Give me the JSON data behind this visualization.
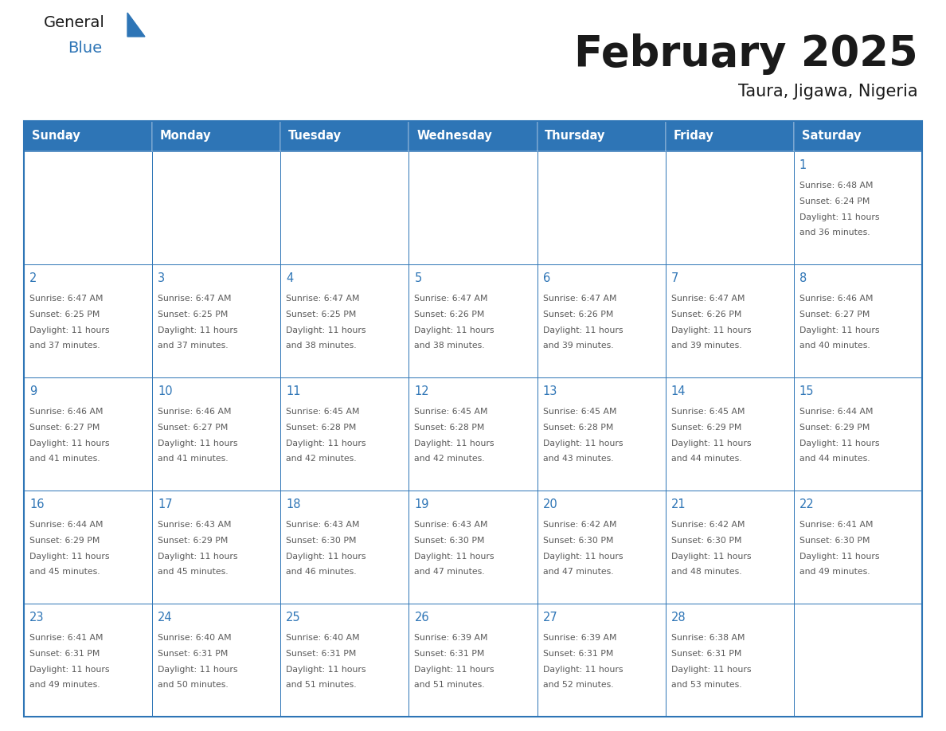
{
  "title": "February 2025",
  "subtitle": "Taura, Jigawa, Nigeria",
  "header_color": "#2E75B6",
  "header_text_color": "#FFFFFF",
  "days_of_week": [
    "Sunday",
    "Monday",
    "Tuesday",
    "Wednesday",
    "Thursday",
    "Friday",
    "Saturday"
  ],
  "bg_color": "#FFFFFF",
  "border_color": "#2E75B6",
  "text_color": "#595959",
  "day_num_color": "#2E75B6",
  "logo_general_color": "#1a1a1a",
  "logo_blue_color": "#2E75B6",
  "logo_triangle_color": "#2E75B6",
  "calendar_data": [
    [
      null,
      null,
      null,
      null,
      null,
      null,
      {
        "day": 1,
        "sunrise": "6:48 AM",
        "sunset": "6:24 PM",
        "daylight_line1": "Daylight: 11 hours",
        "daylight_line2": "and 36 minutes."
      }
    ],
    [
      {
        "day": 2,
        "sunrise": "6:47 AM",
        "sunset": "6:25 PM",
        "daylight_line1": "Daylight: 11 hours",
        "daylight_line2": "and 37 minutes."
      },
      {
        "day": 3,
        "sunrise": "6:47 AM",
        "sunset": "6:25 PM",
        "daylight_line1": "Daylight: 11 hours",
        "daylight_line2": "and 37 minutes."
      },
      {
        "day": 4,
        "sunrise": "6:47 AM",
        "sunset": "6:25 PM",
        "daylight_line1": "Daylight: 11 hours",
        "daylight_line2": "and 38 minutes."
      },
      {
        "day": 5,
        "sunrise": "6:47 AM",
        "sunset": "6:26 PM",
        "daylight_line1": "Daylight: 11 hours",
        "daylight_line2": "and 38 minutes."
      },
      {
        "day": 6,
        "sunrise": "6:47 AM",
        "sunset": "6:26 PM",
        "daylight_line1": "Daylight: 11 hours",
        "daylight_line2": "and 39 minutes."
      },
      {
        "day": 7,
        "sunrise": "6:47 AM",
        "sunset": "6:26 PM",
        "daylight_line1": "Daylight: 11 hours",
        "daylight_line2": "and 39 minutes."
      },
      {
        "day": 8,
        "sunrise": "6:46 AM",
        "sunset": "6:27 PM",
        "daylight_line1": "Daylight: 11 hours",
        "daylight_line2": "and 40 minutes."
      }
    ],
    [
      {
        "day": 9,
        "sunrise": "6:46 AM",
        "sunset": "6:27 PM",
        "daylight_line1": "Daylight: 11 hours",
        "daylight_line2": "and 41 minutes."
      },
      {
        "day": 10,
        "sunrise": "6:46 AM",
        "sunset": "6:27 PM",
        "daylight_line1": "Daylight: 11 hours",
        "daylight_line2": "and 41 minutes."
      },
      {
        "day": 11,
        "sunrise": "6:45 AM",
        "sunset": "6:28 PM",
        "daylight_line1": "Daylight: 11 hours",
        "daylight_line2": "and 42 minutes."
      },
      {
        "day": 12,
        "sunrise": "6:45 AM",
        "sunset": "6:28 PM",
        "daylight_line1": "Daylight: 11 hours",
        "daylight_line2": "and 42 minutes."
      },
      {
        "day": 13,
        "sunrise": "6:45 AM",
        "sunset": "6:28 PM",
        "daylight_line1": "Daylight: 11 hours",
        "daylight_line2": "and 43 minutes."
      },
      {
        "day": 14,
        "sunrise": "6:45 AM",
        "sunset": "6:29 PM",
        "daylight_line1": "Daylight: 11 hours",
        "daylight_line2": "and 44 minutes."
      },
      {
        "day": 15,
        "sunrise": "6:44 AM",
        "sunset": "6:29 PM",
        "daylight_line1": "Daylight: 11 hours",
        "daylight_line2": "and 44 minutes."
      }
    ],
    [
      {
        "day": 16,
        "sunrise": "6:44 AM",
        "sunset": "6:29 PM",
        "daylight_line1": "Daylight: 11 hours",
        "daylight_line2": "and 45 minutes."
      },
      {
        "day": 17,
        "sunrise": "6:43 AM",
        "sunset": "6:29 PM",
        "daylight_line1": "Daylight: 11 hours",
        "daylight_line2": "and 45 minutes."
      },
      {
        "day": 18,
        "sunrise": "6:43 AM",
        "sunset": "6:30 PM",
        "daylight_line1": "Daylight: 11 hours",
        "daylight_line2": "and 46 minutes."
      },
      {
        "day": 19,
        "sunrise": "6:43 AM",
        "sunset": "6:30 PM",
        "daylight_line1": "Daylight: 11 hours",
        "daylight_line2": "and 47 minutes."
      },
      {
        "day": 20,
        "sunrise": "6:42 AM",
        "sunset": "6:30 PM",
        "daylight_line1": "Daylight: 11 hours",
        "daylight_line2": "and 47 minutes."
      },
      {
        "day": 21,
        "sunrise": "6:42 AM",
        "sunset": "6:30 PM",
        "daylight_line1": "Daylight: 11 hours",
        "daylight_line2": "and 48 minutes."
      },
      {
        "day": 22,
        "sunrise": "6:41 AM",
        "sunset": "6:30 PM",
        "daylight_line1": "Daylight: 11 hours",
        "daylight_line2": "and 49 minutes."
      }
    ],
    [
      {
        "day": 23,
        "sunrise": "6:41 AM",
        "sunset": "6:31 PM",
        "daylight_line1": "Daylight: 11 hours",
        "daylight_line2": "and 49 minutes."
      },
      {
        "day": 24,
        "sunrise": "6:40 AM",
        "sunset": "6:31 PM",
        "daylight_line1": "Daylight: 11 hours",
        "daylight_line2": "and 50 minutes."
      },
      {
        "day": 25,
        "sunrise": "6:40 AM",
        "sunset": "6:31 PM",
        "daylight_line1": "Daylight: 11 hours",
        "daylight_line2": "and 51 minutes."
      },
      {
        "day": 26,
        "sunrise": "6:39 AM",
        "sunset": "6:31 PM",
        "daylight_line1": "Daylight: 11 hours",
        "daylight_line2": "and 51 minutes."
      },
      {
        "day": 27,
        "sunrise": "6:39 AM",
        "sunset": "6:31 PM",
        "daylight_line1": "Daylight: 11 hours",
        "daylight_line2": "and 52 minutes."
      },
      {
        "day": 28,
        "sunrise": "6:38 AM",
        "sunset": "6:31 PM",
        "daylight_line1": "Daylight: 11 hours",
        "daylight_line2": "and 53 minutes."
      },
      null
    ]
  ],
  "fig_width": 11.88,
  "fig_height": 9.18,
  "dpi": 100
}
